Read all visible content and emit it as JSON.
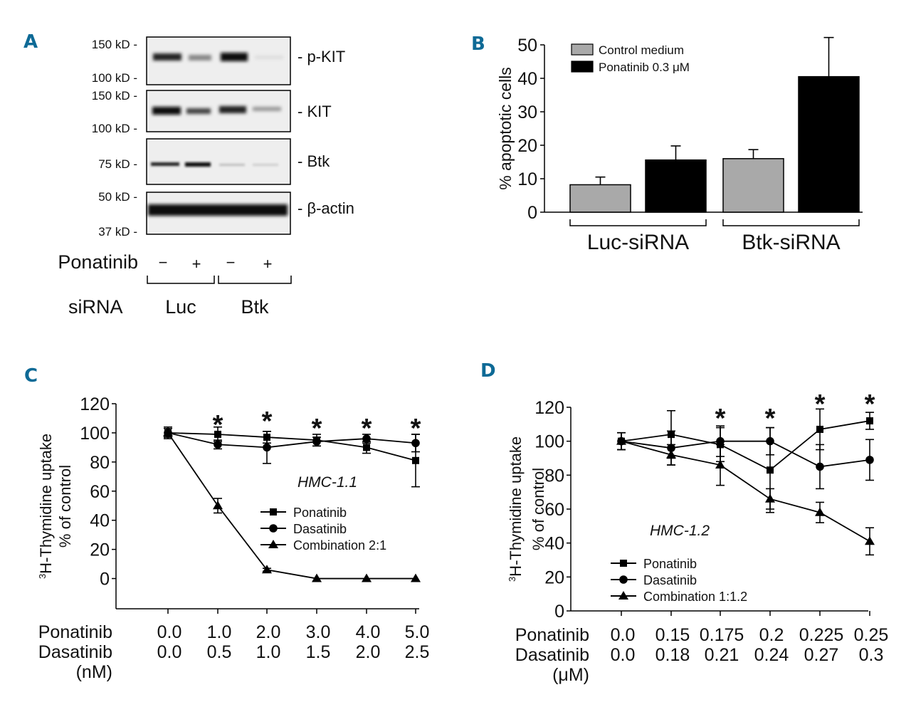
{
  "colors": {
    "panel_letter": "#0e6a96",
    "control_bar": "#a9a9a9",
    "treated_bar": "#000000"
  },
  "panel_a": {
    "letter": "A",
    "blots": [
      {
        "protein": "- p-KIT",
        "markers": [
          "150 kD -",
          "100 kD -"
        ]
      },
      {
        "protein": "- KIT",
        "markers": [
          "150 kD -",
          "100 kD -"
        ]
      },
      {
        "protein": "- Btk",
        "markers": [
          "75 kD -"
        ]
      },
      {
        "protein": "- β-actin",
        "markers": [
          "50 kD -",
          "37 kD -"
        ]
      }
    ],
    "ponatinib_label": "Ponatinib",
    "ponatinib_lanes": [
      "−",
      "+",
      "−",
      "+"
    ],
    "sirna_label": "siRNA",
    "sirna_groups": [
      "Luc",
      "Btk"
    ]
  },
  "chart_data": [
    {
      "panel": "B",
      "type": "bar",
      "title": "",
      "ylabel": "% apoptotic cells",
      "xlabel": "",
      "ylim": [
        0,
        50
      ],
      "yticks": [
        0,
        10,
        20,
        30,
        40,
        50
      ],
      "categories": [
        "Luc-siRNA",
        "Btk-siRNA"
      ],
      "legend_position": "top-left",
      "series": [
        {
          "name": "Control medium",
          "values": [
            8.2,
            16
          ],
          "errors": [
            2.3,
            2.7
          ]
        },
        {
          "name": "Ponatinib 0.3 μM",
          "values": [
            15.6,
            40.5
          ],
          "errors": [
            4.2,
            11.7
          ]
        }
      ]
    },
    {
      "panel": "C",
      "type": "line",
      "title": "",
      "annotation": "HMC-1.1",
      "ylabel_line1": "3H-Thymidine uptake",
      "ylabel_line2": "% of control",
      "ylim": [
        -10,
        120
      ],
      "yticks": [
        0,
        20,
        40,
        60,
        80,
        100,
        120
      ],
      "x_rows": [
        {
          "label": "Ponatinib",
          "values": [
            "0.0",
            "1.0",
            "2.0",
            "3.0",
            "4.0",
            "5.0"
          ]
        },
        {
          "label": "Dasatinib",
          "values": [
            "0.0",
            "0.5",
            "1.0",
            "1.5",
            "2.0",
            "2.5"
          ]
        }
      ],
      "x_unit": "(nM)",
      "significance": [
        "",
        "*",
        "*",
        "*",
        "*",
        "*"
      ],
      "legend_position": "center-right",
      "series": [
        {
          "name": "Ponatinib",
          "marker": "square",
          "values": [
            100,
            99,
            97,
            95,
            90,
            81
          ],
          "errors": [
            4,
            5,
            4,
            4,
            4,
            18
          ]
        },
        {
          "name": "Dasatinib",
          "marker": "circle",
          "values": [
            100,
            92,
            90,
            94,
            96,
            93
          ],
          "errors": [
            3,
            3,
            11,
            3,
            3,
            6
          ]
        },
        {
          "name": "Combination 2:1",
          "marker": "triangle",
          "values": [
            100,
            50,
            6,
            0,
            0,
            0
          ],
          "errors": [
            3,
            5,
            1,
            0,
            0,
            0
          ]
        }
      ]
    },
    {
      "panel": "D",
      "type": "line",
      "title": "",
      "annotation": "HMC-1.2",
      "ylabel_line1": "3H-Thymidine uptake",
      "ylabel_line2": "% of control",
      "ylim": [
        0,
        120
      ],
      "yticks": [
        0,
        20,
        40,
        60,
        80,
        100,
        120
      ],
      "x_rows": [
        {
          "label": "Ponatinib",
          "values": [
            "0.0",
            "0.15",
            "0.175",
            "0.2",
            "0.225",
            "0.25"
          ]
        },
        {
          "label": "Dasatinib",
          "values": [
            "0.0",
            "0.18",
            "0.21",
            "0.24",
            "0.27",
            "0.3"
          ]
        }
      ],
      "x_unit": "(μM)",
      "significance": [
        "",
        "",
        "*",
        "*",
        "*",
        "*"
      ],
      "legend_position": "bottom-left",
      "series": [
        {
          "name": "Ponatinib",
          "marker": "square",
          "values": [
            100,
            104,
            98,
            83,
            107,
            112
          ],
          "errors": [
            5,
            14,
            10,
            25,
            12,
            5
          ]
        },
        {
          "name": "Dasatinib",
          "marker": "circle",
          "values": [
            100,
            96,
            100,
            100,
            85,
            89
          ],
          "errors": [
            5,
            10,
            9,
            8,
            13,
            12
          ]
        },
        {
          "name": "Combination 1:1.2",
          "marker": "triangle",
          "values": [
            100,
            92,
            86,
            66,
            58,
            41
          ],
          "errors": [
            5,
            6,
            12,
            6,
            6,
            8
          ]
        }
      ]
    }
  ]
}
